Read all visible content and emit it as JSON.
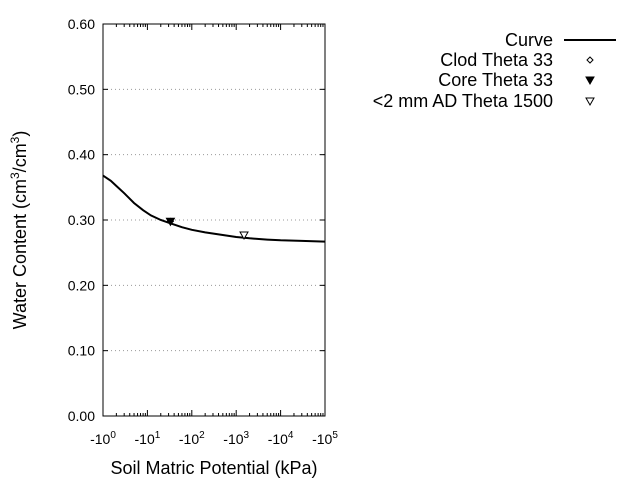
{
  "chart_data": {
    "type": "line",
    "title": "",
    "xlabel": "Soil Matric Potential (kPa)",
    "ylabel_parts": [
      "Water Content (cm",
      "3",
      "/cm",
      "3",
      ")"
    ],
    "x_scale": "log",
    "x_note": "matric potential is negative; tick labels show -10^n",
    "xlim": [
      -1,
      -100000
    ],
    "ylim": [
      0.0,
      0.6
    ],
    "x_ticks": [
      {
        "base": "-10",
        "exp": "0",
        "value": -1
      },
      {
        "base": "-10",
        "exp": "1",
        "value": -10
      },
      {
        "base": "-10",
        "exp": "2",
        "value": -100
      },
      {
        "base": "-10",
        "exp": "3",
        "value": -1000
      },
      {
        "base": "-10",
        "exp": "4",
        "value": -10000
      },
      {
        "base": "-10",
        "exp": "5",
        "value": -100000
      }
    ],
    "y_ticks": [
      "0.00",
      "0.10",
      "0.20",
      "0.30",
      "0.40",
      "0.50",
      "0.60"
    ],
    "y_grid": true,
    "legend_position": "top-right outside plot",
    "series": [
      {
        "name": "Curve",
        "kind": "line",
        "color": "#000000",
        "points": [
          {
            "x": -1,
            "y": 0.368
          },
          {
            "x": -1.5,
            "y": 0.36
          },
          {
            "x": -2,
            "y": 0.352
          },
          {
            "x": -3,
            "y": 0.341
          },
          {
            "x": -5,
            "y": 0.326
          },
          {
            "x": -8,
            "y": 0.315
          },
          {
            "x": -12,
            "y": 0.307
          },
          {
            "x": -20,
            "y": 0.3
          },
          {
            "x": -33,
            "y": 0.295
          },
          {
            "x": -60,
            "y": 0.289
          },
          {
            "x": -100,
            "y": 0.285
          },
          {
            "x": -200,
            "y": 0.281
          },
          {
            "x": -500,
            "y": 0.277
          },
          {
            "x": -1000,
            "y": 0.274
          },
          {
            "x": -2000,
            "y": 0.272
          },
          {
            "x": -5000,
            "y": 0.27
          },
          {
            "x": -10000,
            "y": 0.269
          },
          {
            "x": -30000,
            "y": 0.268
          },
          {
            "x": -100000,
            "y": 0.267
          }
        ]
      },
      {
        "name": "Clod Theta 33",
        "kind": "marker",
        "marker": "diamond-open",
        "points": [
          {
            "x": -33,
            "y": 0.298
          }
        ]
      },
      {
        "name": "Core Theta 33",
        "kind": "marker",
        "marker": "triangle-down-filled",
        "points": [
          {
            "x": -33,
            "y": 0.298
          }
        ]
      },
      {
        "name": "<2 mm AD Theta 1500",
        "kind": "marker",
        "marker": "triangle-down-open",
        "points": [
          {
            "x": -1500,
            "y": 0.277
          }
        ]
      }
    ]
  }
}
